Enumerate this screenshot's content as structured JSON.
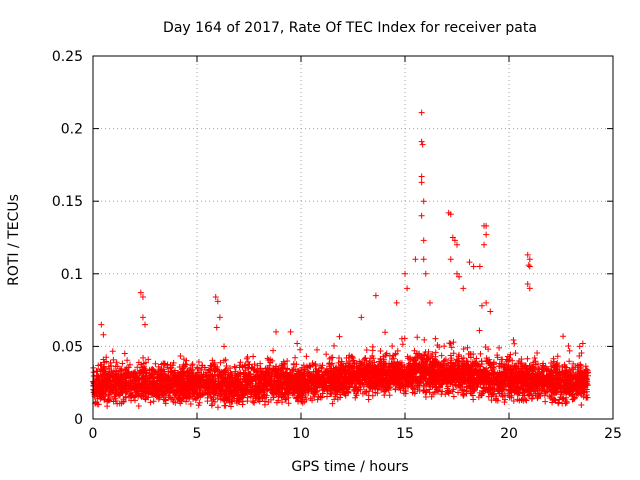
{
  "chart_data": {
    "type": "scatter",
    "title": "Day 164 of 2017, Rate Of TEC Index for receiver pata",
    "xlabel": "GPS time / hours",
    "ylabel": "ROTI / TECUs",
    "xlim": [
      0,
      25
    ],
    "ylim": [
      0,
      0.25
    ],
    "x_ticks": [
      0,
      5,
      10,
      15,
      20,
      25
    ],
    "x_tick_labels": [
      "0",
      "5",
      "10",
      "15",
      "20",
      "25"
    ],
    "y_ticks": [
      0,
      0.05,
      0.1,
      0.15,
      0.2,
      0.25
    ],
    "y_tick_labels": [
      "0",
      "0.05",
      "0.1",
      "0.15",
      "0.2",
      "0.25"
    ],
    "grid": true,
    "marker": "+",
    "color": "#ff0000",
    "baseline_profile": [
      [
        0.0,
        0.024
      ],
      [
        1.0,
        0.024
      ],
      [
        2.0,
        0.025
      ],
      [
        3.0,
        0.024
      ],
      [
        4.0,
        0.024
      ],
      [
        5.0,
        0.024
      ],
      [
        6.0,
        0.024
      ],
      [
        7.0,
        0.024
      ],
      [
        8.0,
        0.024
      ],
      [
        9.0,
        0.025
      ],
      [
        10.0,
        0.024
      ],
      [
        11.0,
        0.025
      ],
      [
        12.0,
        0.028
      ],
      [
        13.0,
        0.03
      ],
      [
        14.0,
        0.03
      ],
      [
        15.0,
        0.03
      ],
      [
        16.0,
        0.032
      ],
      [
        17.0,
        0.03
      ],
      [
        18.0,
        0.03
      ],
      [
        19.0,
        0.028
      ],
      [
        20.0,
        0.027
      ],
      [
        21.0,
        0.026
      ],
      [
        22.0,
        0.025
      ],
      [
        23.0,
        0.025
      ],
      [
        23.8,
        0.024
      ]
    ],
    "spikes": [
      [
        0.4,
        0.065
      ],
      [
        0.5,
        0.058
      ],
      [
        2.3,
        0.087
      ],
      [
        2.4,
        0.084
      ],
      [
        2.4,
        0.07
      ],
      [
        2.5,
        0.065
      ],
      [
        5.9,
        0.084
      ],
      [
        6.0,
        0.081
      ],
      [
        6.1,
        0.07
      ],
      [
        5.95,
        0.063
      ],
      [
        6.3,
        0.05
      ],
      [
        8.8,
        0.06
      ],
      [
        9.5,
        0.06
      ],
      [
        12.9,
        0.07
      ],
      [
        13.6,
        0.085
      ],
      [
        14.6,
        0.08
      ],
      [
        15.0,
        0.1
      ],
      [
        15.1,
        0.09
      ],
      [
        15.5,
        0.11
      ],
      [
        15.8,
        0.211
      ],
      [
        15.8,
        0.191
      ],
      [
        15.85,
        0.189
      ],
      [
        15.8,
        0.167
      ],
      [
        15.8,
        0.163
      ],
      [
        15.9,
        0.15
      ],
      [
        15.8,
        0.14
      ],
      [
        15.9,
        0.123
      ],
      [
        15.9,
        0.11
      ],
      [
        16.0,
        0.1
      ],
      [
        16.2,
        0.08
      ],
      [
        17.1,
        0.142
      ],
      [
        17.2,
        0.141
      ],
      [
        17.3,
        0.125
      ],
      [
        17.4,
        0.123
      ],
      [
        17.5,
        0.12
      ],
      [
        17.5,
        0.1
      ],
      [
        17.6,
        0.098
      ],
      [
        17.2,
        0.11
      ],
      [
        17.8,
        0.09
      ],
      [
        18.1,
        0.108
      ],
      [
        18.3,
        0.105
      ],
      [
        18.6,
        0.105
      ],
      [
        18.8,
        0.133
      ],
      [
        18.9,
        0.133
      ],
      [
        18.9,
        0.127
      ],
      [
        18.8,
        0.12
      ],
      [
        18.7,
        0.078
      ],
      [
        18.9,
        0.08
      ],
      [
        19.1,
        0.074
      ],
      [
        20.9,
        0.113
      ],
      [
        21.0,
        0.11
      ],
      [
        20.95,
        0.106
      ],
      [
        21.0,
        0.105
      ],
      [
        20.9,
        0.093
      ],
      [
        21.0,
        0.09
      ],
      [
        22.6,
        0.057
      ],
      [
        23.4,
        0.05
      ]
    ]
  }
}
